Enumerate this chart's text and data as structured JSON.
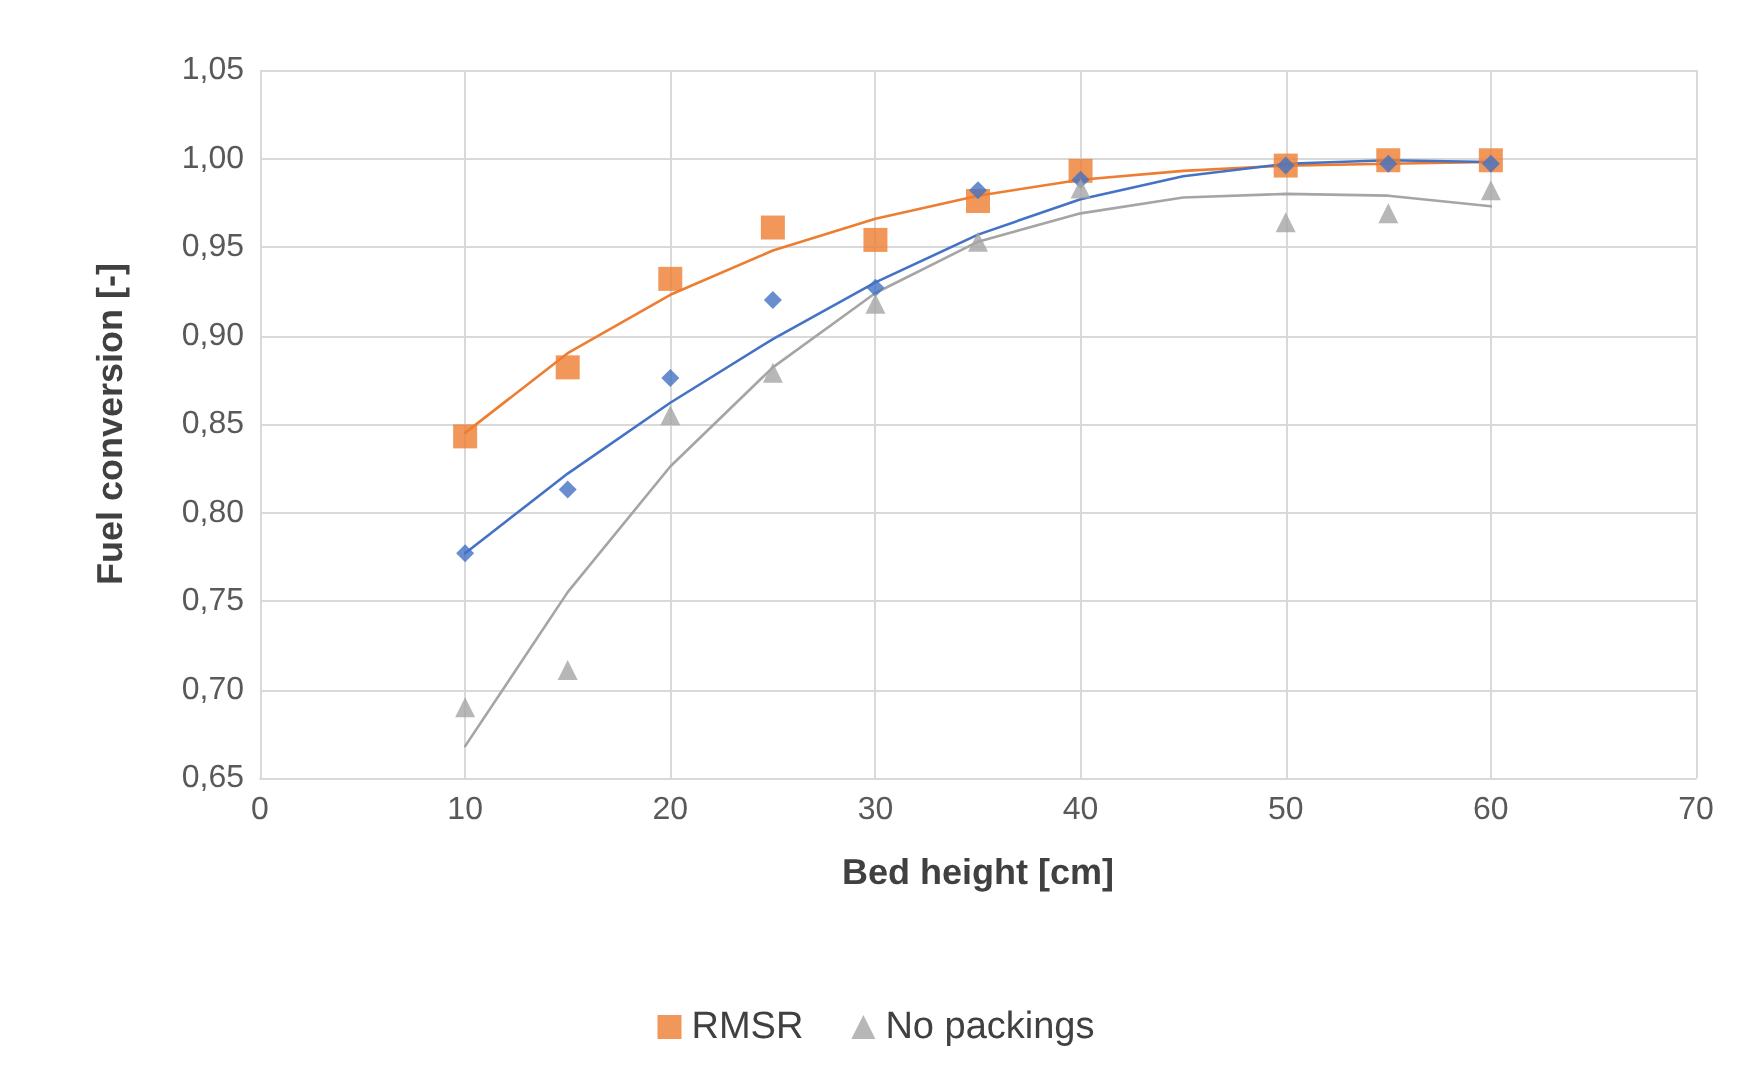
{
  "chart_data": {
    "type": "scatter",
    "xlabel": "Bed height [cm]",
    "ylabel": "Fuel conversion [-]",
    "xlim": [
      0,
      70
    ],
    "xticks": [
      0,
      10,
      20,
      30,
      40,
      50,
      60,
      70
    ],
    "ylim": [
      0.65,
      1.05
    ],
    "yticks": [
      {
        "value": 0.65,
        "label": "0,65"
      },
      {
        "value": 0.7,
        "label": "0,70"
      },
      {
        "value": 0.75,
        "label": "0,75"
      },
      {
        "value": 0.8,
        "label": "0,80"
      },
      {
        "value": 0.85,
        "label": "0,85"
      },
      {
        "value": 0.9,
        "label": "0,90"
      },
      {
        "value": 0.95,
        "label": "0,95"
      },
      {
        "value": 1.0,
        "label": "1,00"
      },
      {
        "value": 1.05,
        "label": "1,05"
      }
    ],
    "grid": true,
    "legend": "bottom",
    "series": [
      {
        "name": "RMSR",
        "marker": "square",
        "color": "#ed7d31",
        "x": [
          10,
          15,
          20,
          25,
          30,
          35,
          40,
          50,
          55,
          60
        ],
        "values": [
          0.843,
          0.882,
          0.932,
          0.961,
          0.954,
          0.976,
          0.993,
          0.996,
          0.999,
          0.999
        ]
      },
      {
        "marker": "diamond",
        "color": "#4472c4",
        "x": [
          10,
          15,
          20,
          25,
          30,
          35,
          40,
          50,
          55,
          60
        ],
        "values": [
          0.777,
          0.813,
          0.876,
          0.92,
          0.927,
          0.982,
          0.988,
          0.996,
          0.997,
          0.997
        ]
      },
      {
        "name": "No packings",
        "marker": "triangle",
        "color": "#a5a5a5",
        "x": [
          10,
          15,
          20,
          25,
          30,
          35,
          40,
          50,
          55,
          60
        ],
        "values": [
          0.69,
          0.711,
          0.855,
          0.879,
          0.918,
          0.953,
          0.983,
          0.964,
          0.969,
          0.982
        ]
      },
      {
        "type": "line",
        "marker": "none",
        "line_style": "solid",
        "color": "#ed7d31",
        "x": [
          10,
          15,
          20,
          25,
          30,
          35,
          40,
          45,
          50,
          55,
          60
        ],
        "values": [
          0.845,
          0.89,
          0.923,
          0.948,
          0.966,
          0.979,
          0.988,
          0.993,
          0.996,
          0.997,
          0.998
        ]
      },
      {
        "type": "line",
        "marker": "none",
        "line_style": "solid",
        "color": "#4472c4",
        "x": [
          10,
          15,
          20,
          25,
          30,
          35,
          40,
          45,
          50,
          55,
          60
        ],
        "values": [
          0.777,
          0.822,
          0.862,
          0.898,
          0.93,
          0.957,
          0.977,
          0.99,
          0.997,
          0.999,
          0.998
        ]
      },
      {
        "type": "line",
        "marker": "none",
        "line_style": "solid",
        "color": "#a5a5a5",
        "x": [
          10,
          15,
          20,
          25,
          30,
          35,
          40,
          45,
          50,
          55,
          60
        ],
        "values": [
          0.668,
          0.755,
          0.826,
          0.882,
          0.924,
          0.953,
          0.969,
          0.978,
          0.98,
          0.979,
          0.973
        ]
      }
    ]
  }
}
